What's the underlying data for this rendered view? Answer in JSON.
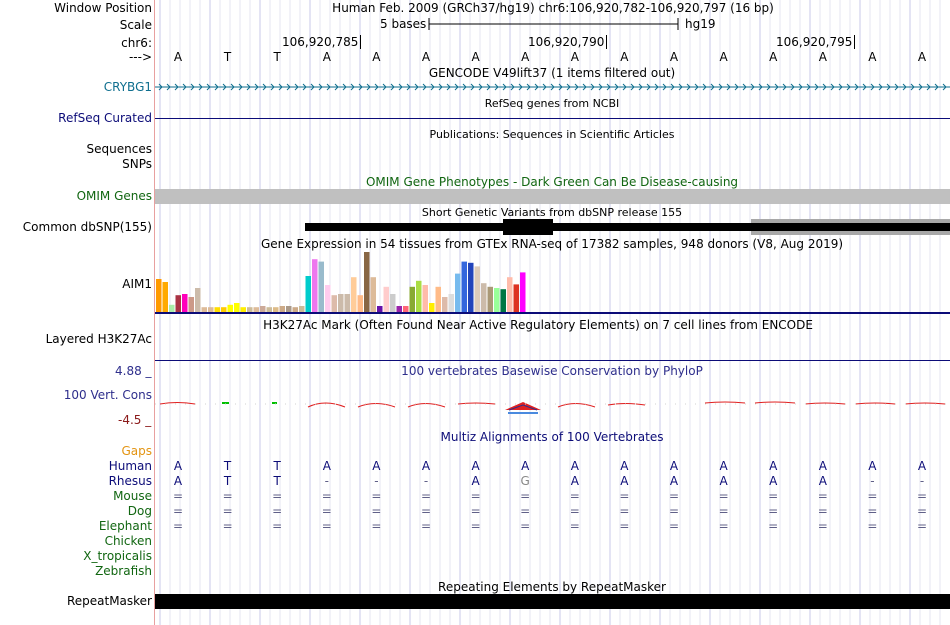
{
  "header": {
    "window_position_label": "Window Position",
    "window_position_value": "Human Feb. 2009 (GRCh37/hg19)   chr6:106,920,782-106,920,797 (16 bp)",
    "scale_label": "Scale",
    "scale_value": "5 bases",
    "assembly": "hg19",
    "chrom_label": "chr6:",
    "arrow_label": "--->",
    "coord_ticks": [
      "106,920,785",
      "106,920,790",
      "106,920,795"
    ]
  },
  "sequence": [
    "A",
    "T",
    "T",
    "A",
    "A",
    "A",
    "A",
    "A",
    "A",
    "A",
    "A",
    "A",
    "A",
    "A",
    "A",
    "A"
  ],
  "tracks": {
    "gencode": {
      "title": "GENCODE V49lift37 (1 items filtered out)",
      "gene_label": "CRYBG1",
      "color": "#0e6e8e"
    },
    "refseq": {
      "title": "RefSeq genes from NCBI",
      "label": "RefSeq Curated",
      "color": "#0c0c78"
    },
    "publications": {
      "title": "Publications: Sequences in Scientific Articles",
      "label_line1": "Sequences",
      "label_line2": "SNPs"
    },
    "omim": {
      "title": "OMIM Gene Phenotypes - Dark Green Can Be Disease-causing",
      "label": "OMIM Genes",
      "color": "#116611"
    },
    "dbsnp": {
      "title": "Short Genetic Variants from dbSNP release 155",
      "label": "Common dbSNP(155)"
    },
    "gtex": {
      "title": "Gene Expression in 54 tissues from GTEx RNA-seq of 17382 samples, 948 donors (V8, Aug 2019)",
      "label": "AIM1",
      "values": [
        0.55,
        0.5,
        0.12,
        0.28,
        0.3,
        0.25,
        0.4,
        0.08,
        0.08,
        0.08,
        0.08,
        0.12,
        0.15,
        0.08,
        0.08,
        0.08,
        0.1,
        0.08,
        0.08,
        0.1,
        0.1,
        0.08,
        0.1,
        0.6,
        0.88,
        0.84,
        0.45,
        0.28,
        0.3,
        0.3,
        0.58,
        0.28,
        1.0,
        0.58,
        0.1,
        0.42,
        0.3,
        0.1,
        0.1,
        0.42,
        0.52,
        0.45,
        0.15,
        0.42,
        0.25,
        0.3,
        0.64,
        0.84,
        0.82,
        0.76,
        0.48,
        0.42,
        0.4,
        0.38,
        0.58,
        0.46,
        0.66
      ],
      "colors": [
        "#ff9900",
        "#ffaa00",
        "#aaeeaa",
        "#aa3344",
        "#ff00bb",
        "#cc9988",
        "#ccbbaa",
        "#ddbb99",
        "#ddbb99",
        "#ffdd00",
        "#ffcc00",
        "#ffff00",
        "#ffff00",
        "#ffee00",
        "#ccbb99",
        "#ddbb99",
        "#ccaa99",
        "#ccbb99",
        "#ddbb88",
        "#ccaa88",
        "#aa9988",
        "#ccaa88",
        "#ccbb99",
        "#00cccc",
        "#ee77ee",
        "#99bbcc",
        "#ffccee",
        "#ddbbaa",
        "#ccbbaa",
        "#ccbbaa",
        "#ffcc99",
        "#ffbb88",
        "#886644",
        "#ddbb99",
        "#6611aa",
        "#ffcccc",
        "#cccccc",
        "#9922aa",
        "#ff6677",
        "#88aa33",
        "#aadd44",
        "#ffbbaa",
        "#ffee00",
        "#ffbb88",
        "#ddbbaa",
        "#dddddd",
        "#77bbee",
        "#3366dd",
        "#2244bb",
        "#ddccbb",
        "#ccbbaa",
        "#aa9977",
        "#99ff99",
        "#007744",
        "#ffbbaa",
        "#dd3322",
        "#ff00ff"
      ]
    },
    "h3k27ac": {
      "title": "H3K27Ac Mark (Often Found Near Active Regulatory Elements) on 7 cell lines from ENCODE",
      "label": "Layered H3K27Ac"
    },
    "conservation": {
      "title": "100 vertebrates Basewise Conservation by PhyloP",
      "label": "100 Vert. Cons",
      "ymax": "4.88 _",
      "ymin": "-4.5 _",
      "color": "#2e2e8c",
      "ymin_color": "#8b1a1a"
    },
    "multiz": {
      "title": "Multiz Alignments of 100 Vertebrates",
      "gaps_label": "Gaps",
      "gaps_color": "#e39412",
      "species": [
        {
          "name": "Human",
          "color": "#0c0c78",
          "row": [
            "A",
            "T",
            "T",
            "A",
            "A",
            "A",
            "A",
            "A",
            "A",
            "A",
            "A",
            "A",
            "A",
            "A",
            "A",
            "A"
          ]
        },
        {
          "name": "Rhesus",
          "color": "#0c0c78",
          "row": [
            "A",
            "T",
            "T",
            "-",
            "-",
            "-",
            "A",
            "G",
            "A",
            "A",
            "A",
            "A",
            "A",
            "A",
            "-",
            "-"
          ]
        },
        {
          "name": "Mouse",
          "color": "#116611",
          "row": [
            "=",
            "=",
            "=",
            "=",
            "=",
            "=",
            "=",
            "=",
            "=",
            "=",
            "=",
            "=",
            "=",
            "=",
            "=",
            "="
          ]
        },
        {
          "name": "Dog",
          "color": "#116611",
          "row": [
            "=",
            "=",
            "=",
            "=",
            "=",
            "=",
            "=",
            "=",
            "=",
            "=",
            "=",
            "=",
            "=",
            "=",
            "=",
            "="
          ]
        },
        {
          "name": "Elephant",
          "color": "#116611",
          "row": [
            "=",
            "=",
            "=",
            "=",
            "=",
            "=",
            "=",
            "=",
            "=",
            "=",
            "=",
            "=",
            "=",
            "=",
            "=",
            "="
          ]
        },
        {
          "name": "Chicken",
          "color": "#116611",
          "row": []
        },
        {
          "name": "X_tropicalis",
          "color": "#116611",
          "row": []
        },
        {
          "name": "Zebrafish",
          "color": "#116611",
          "row": []
        }
      ]
    },
    "repeatmasker": {
      "title": "Repeating Elements by RepeatMasker",
      "label": "RepeatMasker"
    }
  }
}
